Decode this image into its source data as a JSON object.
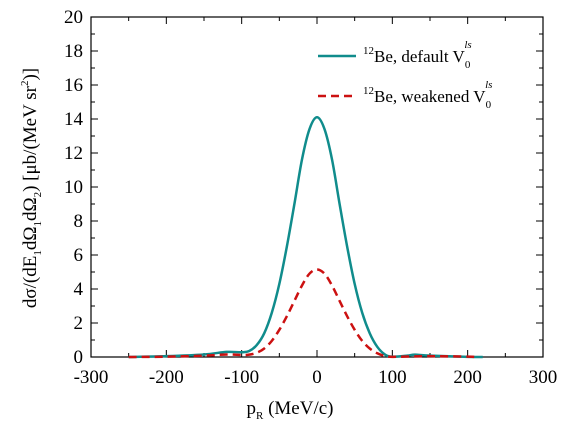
{
  "chart_data": {
    "type": "line",
    "title": "",
    "xlabel": {
      "main": "p",
      "sub": "R",
      "rest": " (MeV/c)"
    },
    "ylabel": {
      "p1": "dσ/(dE",
      "s1": "1",
      "p2": "dΩ",
      "s2": "1",
      "p3": "dΩ",
      "s3": "2",
      "p4": ") [μb/(MeV sr",
      "sup": "2",
      "p5": ")]"
    },
    "xlim": [
      -300,
      300
    ],
    "ylim": [
      0,
      20
    ],
    "xticks": [
      -300,
      -200,
      -100,
      0,
      100,
      200,
      300
    ],
    "yticks": [
      0,
      2,
      4,
      6,
      8,
      10,
      12,
      14,
      16,
      18,
      20
    ],
    "grid": false,
    "legend_position": "top-right",
    "series": [
      {
        "name": "12Be, default V0ls",
        "legend": {
          "mass": "12",
          "nucleus": "Be, default V",
          "sub": "0",
          "sup": "ls"
        },
        "color": "#108c8c",
        "style": "solid",
        "x": [
          -250,
          -200,
          -150,
          -120,
          -100,
          -90,
          -80,
          -70,
          -60,
          -50,
          -40,
          -30,
          -20,
          -10,
          0,
          10,
          20,
          30,
          40,
          50,
          60,
          70,
          80,
          90,
          100,
          120,
          130,
          150,
          200,
          220
        ],
        "y": [
          0.0,
          0.05,
          0.15,
          0.3,
          0.28,
          0.35,
          0.7,
          1.4,
          2.6,
          4.3,
          6.5,
          9.0,
          11.6,
          13.4,
          14.1,
          13.4,
          11.6,
          9.0,
          6.5,
          4.3,
          2.6,
          1.4,
          0.6,
          0.15,
          0.02,
          0.08,
          0.14,
          0.08,
          0.01,
          0.0
        ]
      },
      {
        "name": "12Be, weakened V0ls",
        "legend": {
          "mass": "12",
          "nucleus": "Be, weakened V",
          "sub": "0",
          "sup": "ls"
        },
        "color": "#cc1111",
        "style": "dashed",
        "x": [
          -250,
          -200,
          -150,
          -120,
          -100,
          -90,
          -80,
          -70,
          -60,
          -50,
          -40,
          -30,
          -20,
          -10,
          0,
          10,
          20,
          30,
          40,
          50,
          60,
          70,
          80,
          90,
          100,
          130,
          150,
          200,
          210
        ],
        "y": [
          0.0,
          0.02,
          0.08,
          0.15,
          0.12,
          0.14,
          0.25,
          0.5,
          0.95,
          1.6,
          2.4,
          3.3,
          4.2,
          4.9,
          5.15,
          4.9,
          4.2,
          3.3,
          2.4,
          1.6,
          0.95,
          0.5,
          0.22,
          0.06,
          0.01,
          0.04,
          0.05,
          0.02,
          0.0
        ]
      }
    ]
  }
}
